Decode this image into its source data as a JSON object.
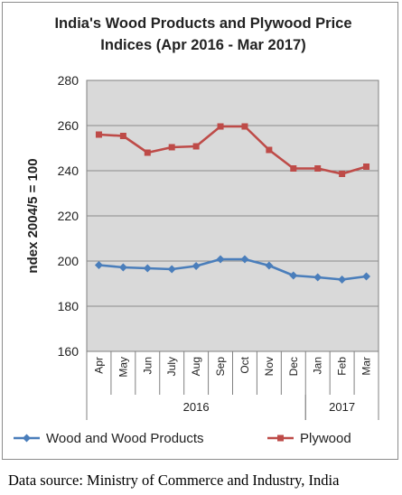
{
  "chart_data": {
    "type": "line",
    "title_lines": [
      "India's Wood Products and Plywood Price",
      "Indices (Apr 2016 - Mar 2017)"
    ],
    "ylabel": "ndex 2004/5 = 100",
    "ylim": [
      160,
      280
    ],
    "yticks": [
      "160",
      "180",
      "200",
      "220",
      "240",
      "260",
      "280"
    ],
    "categories": [
      "Apr",
      "May",
      "Jun",
      "July",
      "Aug",
      "Sep",
      "Oct",
      "Nov",
      "Dec",
      "Jan",
      "Feb",
      "Mar"
    ],
    "year_groups": [
      {
        "label": "2016",
        "start": 0,
        "end": 8
      },
      {
        "label": "2017",
        "start": 9,
        "end": 11
      }
    ],
    "series": [
      {
        "name": "Wood and Wood Products",
        "color": "#4a7ebb",
        "marker": "diamond",
        "values": [
          198.2,
          197.2,
          196.8,
          196.4,
          197.8,
          200.8,
          200.8,
          198.0,
          193.6,
          192.8,
          191.8,
          193.2
        ]
      },
      {
        "name": "Plywood",
        "color": "#be4b48",
        "marker": "square",
        "values": [
          256.0,
          255.4,
          248.0,
          250.4,
          250.8,
          259.6,
          259.6,
          249.2,
          241.0,
          241.0,
          238.6,
          241.8
        ]
      }
    ],
    "grid": true,
    "plot_background": "#d9d9d9",
    "legend_position": "bottom"
  },
  "source_text": "Data source: Ministry of Commerce and Industry, India"
}
